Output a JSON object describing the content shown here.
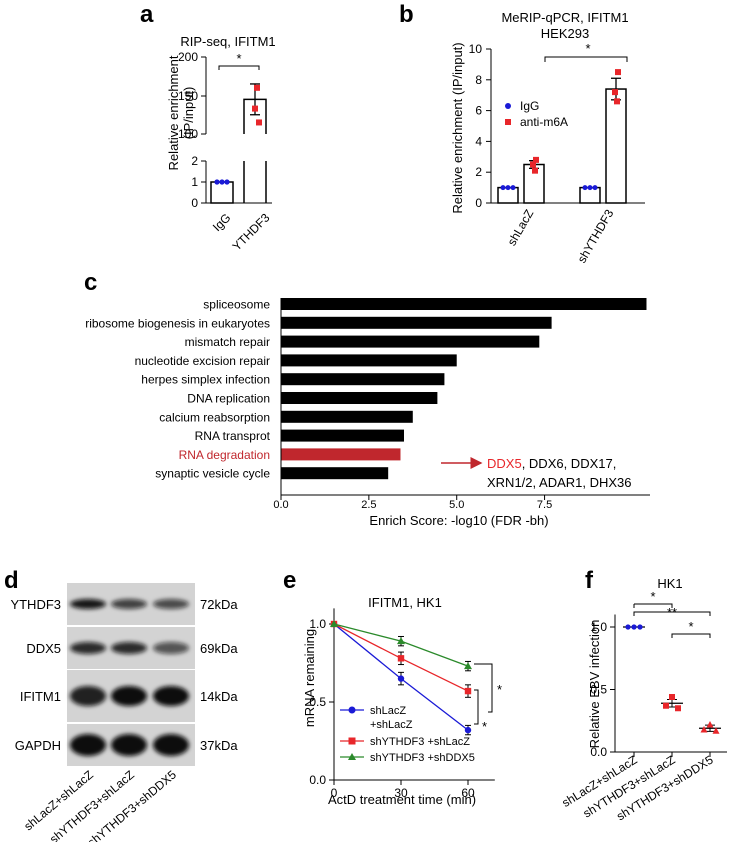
{
  "panels": {
    "a": "a",
    "b": "b",
    "c": "c",
    "d": "d",
    "e": "e",
    "f": "f"
  },
  "colors": {
    "red": "#e8262a",
    "blue": "#1a1ad6",
    "green": "#2b8a2b",
    "black": "#000000",
    "bar_highlight": "#c0272d"
  },
  "chart_data": [
    {
      "id": "a",
      "type": "bar",
      "title": "RIP-seq, IFITM1",
      "ylabel": "Relative enrichment\n(IP/input)",
      "categories": [
        "IgG",
        "YTHDF3"
      ],
      "values": [
        1,
        145
      ],
      "errors": [
        0,
        20
      ],
      "points": [
        [
          1,
          1,
          1
        ],
        [
          160,
          133,
          115
        ]
      ],
      "point_colors": [
        "blue",
        "red"
      ],
      "broken_axis": {
        "lower_ticks": [
          "0",
          "1",
          "2"
        ],
        "upper_ticks": [
          "100",
          "150",
          "200"
        ]
      },
      "significance": [
        {
          "pair": [
            0,
            1
          ],
          "label": "*"
        }
      ]
    },
    {
      "id": "b",
      "type": "bar",
      "title": "MeRIP-qPCR, IFITM1",
      "subtitle": "HEK293",
      "ylabel": "Relative enrichment (IP/input)",
      "ylim": [
        0,
        10
      ],
      "ticks": [
        "0",
        "2",
        "4",
        "6",
        "8",
        "10"
      ],
      "groups": [
        "shLacZ",
        "shYTHDF3"
      ],
      "series": [
        {
          "name": "IgG",
          "color": "blue",
          "values": [
            1,
            1
          ],
          "errors": [
            0,
            0
          ],
          "points": [
            [
              1,
              1,
              1
            ],
            [
              1,
              1,
              1
            ]
          ]
        },
        {
          "name": "anti-m6A",
          "color": "red",
          "values": [
            2.5,
            7.4
          ],
          "errors": [
            0.25,
            0.7
          ],
          "points": [
            [
              2.8,
              2.5,
              2.1
            ],
            [
              8.5,
              7.2,
              6.6
            ]
          ]
        }
      ],
      "significance": [
        {
          "label": "*"
        }
      ]
    },
    {
      "id": "c",
      "type": "bar",
      "orientation": "horizontal",
      "xlabel": "Enrich Score: -log10 (FDR -bh)",
      "xlim": [
        0,
        10.5
      ],
      "ticks": [
        "0.0",
        "2.5",
        "5.0",
        "7.5"
      ],
      "categories": [
        "spliceosome",
        "ribosome biogenesis in eukaryotes",
        "mismatch repair",
        "nucleotide excision repair",
        "herpes simplex infection",
        "DNA replication",
        "calcium reabsorption",
        "RNA transprot",
        "RNA degradation",
        "synaptic vesicle cycle"
      ],
      "values": [
        10.4,
        7.7,
        7.35,
        5.0,
        4.65,
        4.45,
        3.75,
        3.5,
        3.4,
        3.05
      ],
      "highlight_index": 8,
      "annotation": {
        "highlight": "DDX5",
        "rest_line1": ", DDX6, DDX17,",
        "line2": "XRN1/2, ADAR1, DHX36"
      }
    },
    {
      "id": "e",
      "type": "line",
      "title": "IFITM1, HK1",
      "xlabel": "ActD treatment time (min)",
      "ylabel": "mRNA remaining",
      "x": [
        0,
        30,
        60
      ],
      "xticks": [
        "0",
        "30",
        "60"
      ],
      "ylim": [
        0,
        1.1
      ],
      "yticks": [
        "0.0",
        "0.5",
        "1.0"
      ],
      "series": [
        {
          "name_line1": "shLacZ",
          "name_line2": "+shLacZ",
          "color": "blue",
          "marker": "circle",
          "values": [
            1.0,
            0.65,
            0.32
          ],
          "errors": [
            0,
            0.04,
            0.03
          ]
        },
        {
          "name_line1": "shYTHDF3 +shLacZ",
          "color": "red",
          "marker": "square",
          "values": [
            1.0,
            0.78,
            0.57
          ],
          "errors": [
            0,
            0.04,
            0.04
          ]
        },
        {
          "name_line1": "shYTHDF3 +shDDX5",
          "color": "green",
          "marker": "triangle",
          "values": [
            1.0,
            0.89,
            0.73
          ],
          "errors": [
            0,
            0.03,
            0.03
          ]
        }
      ],
      "significance": [
        "*",
        "*"
      ]
    },
    {
      "id": "f",
      "type": "scatter",
      "title": "HK1",
      "ylabel": "Relative EBV infection",
      "ylim": [
        0,
        1.1
      ],
      "yticks": [
        "0.0",
        "0.5",
        "1.0"
      ],
      "categories": [
        "shLacZ+shLacZ",
        "shYTHDF3+shLacZ",
        "shYTHDF3+shDDX5"
      ],
      "means": [
        1.0,
        0.39,
        0.19
      ],
      "errors": [
        0,
        0.03,
        0.025
      ],
      "points": [
        [
          1.0,
          1.0,
          1.0
        ],
        [
          0.44,
          0.37,
          0.35
        ],
        [
          0.22,
          0.18,
          0.17
        ]
      ],
      "point_colors": [
        "blue",
        "red",
        "red"
      ],
      "significance": [
        "*",
        "**",
        "*"
      ]
    }
  ],
  "western_blot": {
    "rows": [
      {
        "label": "YTHDF3",
        "kda": "72kDa"
      },
      {
        "label": "DDX5",
        "kda": "69kDa"
      },
      {
        "label": "IFITM1",
        "kda": "14kDa"
      },
      {
        "label": "GAPDH",
        "kda": "37kDa"
      }
    ],
    "lanes": [
      "shLacZ+shLacZ",
      "shYTHDF3+shLacZ",
      "shYTHDF3+shDDX5"
    ]
  }
}
